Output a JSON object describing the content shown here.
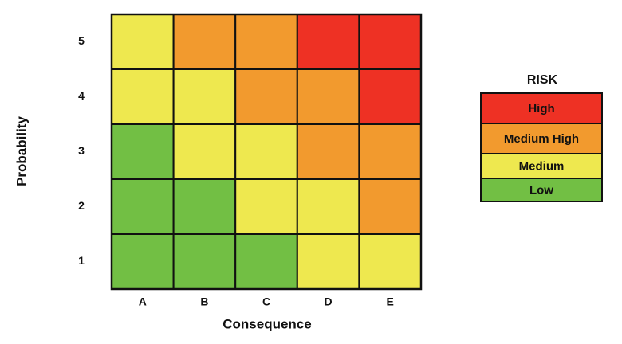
{
  "x_axis": {
    "label": "Consequence",
    "categories": [
      "A",
      "B",
      "C",
      "D",
      "E"
    ]
  },
  "y_axis": {
    "label": "Probability",
    "categories": [
      "5",
      "4",
      "3",
      "2",
      "1"
    ]
  },
  "cells": [
    [
      "Medium",
      "Medium High",
      "Medium High",
      "High",
      "High"
    ],
    [
      "Medium",
      "Medium",
      "Medium High",
      "Medium High",
      "High"
    ],
    [
      "Low",
      "Medium",
      "Medium",
      "Medium High",
      "Medium High"
    ],
    [
      "Low",
      "Low",
      "Medium",
      "Medium",
      "Medium High"
    ],
    [
      "Low",
      "Low",
      "Low",
      "Medium",
      "Medium"
    ]
  ],
  "legend": {
    "title": "RISK",
    "levels": [
      {
        "name": "High",
        "color": "#ee3124"
      },
      {
        "name": "Medium High",
        "color": "#f29a2e"
      },
      {
        "name": "Medium",
        "color": "#eee84f"
      },
      {
        "name": "Low",
        "color": "#72bf44"
      }
    ]
  }
}
